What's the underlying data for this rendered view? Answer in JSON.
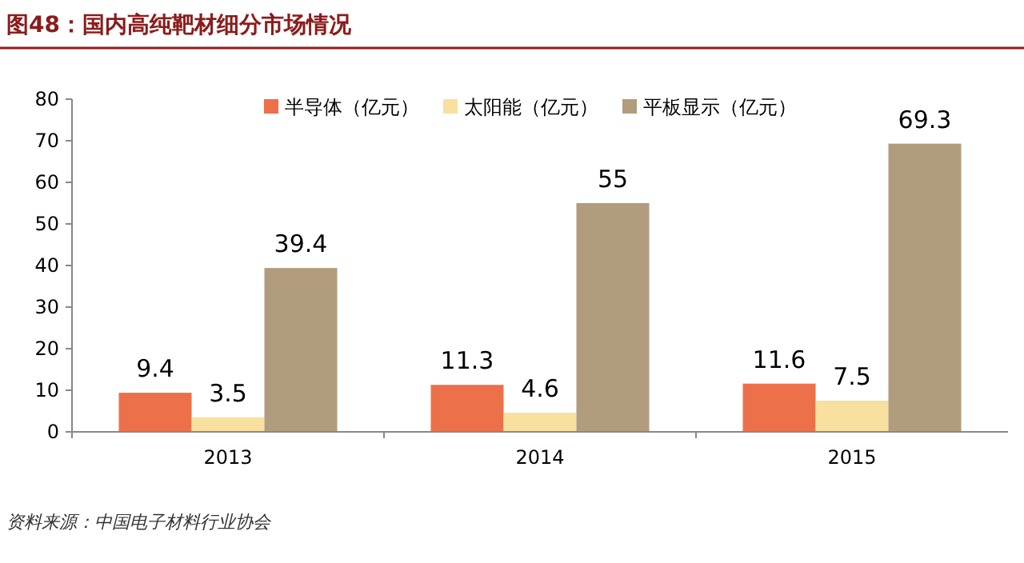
{
  "chart_data": {
    "type": "bar",
    "title": "图48：国内高纯靶材细分市场情况",
    "categories": [
      "2013",
      "2014",
      "2015"
    ],
    "series": [
      {
        "name": "半导体（亿元）",
        "color": "#ec7049",
        "values": [
          9.4,
          11.3,
          11.6
        ]
      },
      {
        "name": "太阳能（亿元）",
        "color": "#f7e0a0",
        "values": [
          3.5,
          4.6,
          7.5
        ]
      },
      {
        "name": "平板显示（亿元）",
        "color": "#b19c7d",
        "values": [
          39.4,
          55,
          69.3
        ]
      }
    ],
    "ylim": [
      0,
      80
    ],
    "yticks": [
      0,
      10,
      20,
      30,
      40,
      50,
      60,
      70,
      80
    ],
    "data_labels": true,
    "legend": "top right",
    "grid": false,
    "annotations": [
      "资料来源：中国电子材料行业协会"
    ]
  }
}
